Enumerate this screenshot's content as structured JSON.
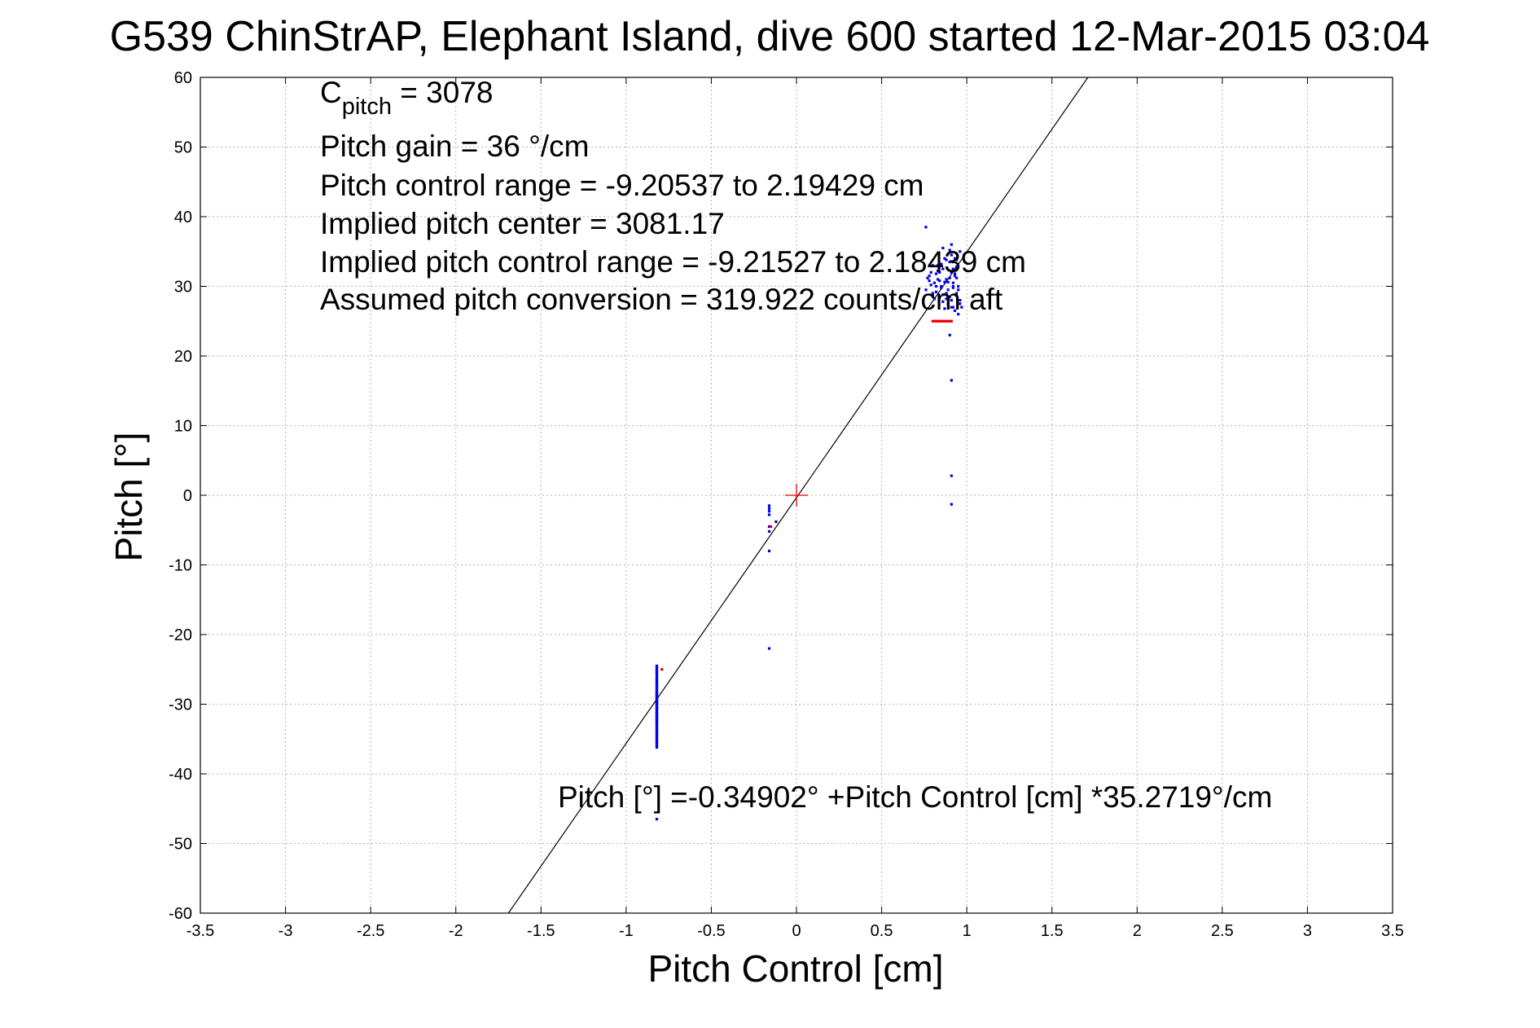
{
  "chart_data": {
    "type": "scatter",
    "title": "G539 ChinStrAP, Elephant Island, dive 600 started 12-Mar-2015 03:04",
    "xlabel": "Pitch Control [cm]",
    "ylabel": "Pitch [°]",
    "xlim": [
      -3.5,
      3.5
    ],
    "ylim": [
      -60,
      60
    ],
    "xticks": [
      -3.5,
      -3,
      -2.5,
      -2,
      -1.5,
      -1,
      -0.5,
      0,
      0.5,
      1,
      1.5,
      2,
      2.5,
      3,
      3.5
    ],
    "yticks": [
      -60,
      -50,
      -40,
      -30,
      -20,
      -10,
      0,
      10,
      20,
      30,
      40,
      50,
      60
    ],
    "xtick_labels": [
      "-3.5",
      "-3",
      "-2.5",
      "-2",
      "-1.5",
      "-1",
      "-0.5",
      "0",
      "0.5",
      "1",
      "1.5",
      "2",
      "2.5",
      "3",
      "3.5"
    ],
    "ytick_labels": [
      "-60",
      "-50",
      "-40",
      "-30",
      "-20",
      "-10",
      "0",
      "10",
      "20",
      "30",
      "40",
      "50",
      "60"
    ],
    "grid": true,
    "colors": {
      "series_main": "#0000ee",
      "series_flagged": "#ee0000",
      "fit_line": "#000000",
      "origin_marker": "#ee0000"
    },
    "annotations": {
      "c_pitch_label": "C",
      "c_pitch_sub": "pitch",
      "c_pitch_value": " = 3078",
      "lines": [
        "Pitch gain = 36 °/cm",
        "Pitch control range = -9.20537 to 2.19429 cm",
        "Implied pitch center = 3081.17",
        "Implied pitch control range = -9.21527 to 2.18439 cm",
        "Assumed pitch conversion = 319.922 counts/cm aft"
      ],
      "fit_equation": "Pitch [°] =-0.34902° +Pitch Control [cm] *35.2719°/cm"
    },
    "fit": {
      "intercept": -0.34902,
      "slope": 35.2719
    },
    "origin_marker": {
      "x": 0,
      "y": 0
    },
    "series": [
      {
        "x": [
          0.76,
          0.77,
          0.78,
          0.79,
          0.8,
          0.81,
          0.82,
          0.83,
          0.84,
          0.85,
          0.86,
          0.87,
          0.88,
          0.89,
          0.9,
          0.91,
          0.92,
          0.93,
          0.94,
          0.95,
          0.96,
          0.97,
          0.78,
          0.8,
          0.82,
          0.84,
          0.86,
          0.88,
          0.9,
          0.92,
          0.94,
          0.96,
          0.79,
          0.81,
          0.83,
          0.85,
          0.87,
          0.89,
          0.91,
          0.93,
          0.95,
          0.8,
          0.82,
          0.84,
          0.86,
          0.88,
          0.9,
          0.92,
          0.94,
          0.96,
          0.83,
          0.85,
          0.87,
          0.89,
          0.91,
          0.93,
          0.95,
          0.86,
          0.88,
          0.9,
          0.92,
          0.94,
          0.9,
          0.91,
          0.92,
          0.93,
          0.91,
          0.92,
          0.91,
          0.91,
          0.91,
          0.76,
          -0.82,
          -0.82,
          -0.82,
          -0.82,
          -0.82,
          -0.82,
          -0.82,
          -0.82,
          -0.82,
          -0.82,
          -0.82,
          -0.82,
          -0.82,
          -0.82,
          -0.82,
          -0.82,
          -0.82,
          -0.82,
          -0.82,
          -0.82,
          -0.82,
          -0.82,
          -0.82,
          -0.82,
          -0.82,
          -0.82,
          -0.82,
          -0.82,
          -0.82,
          -0.82,
          -0.82,
          -0.82,
          -0.82,
          -0.82,
          -0.82,
          -0.82,
          -0.82,
          -0.82,
          -0.82,
          -0.82,
          -0.82,
          -0.82,
          -0.82,
          -0.82,
          -0.82,
          -0.82,
          -0.82,
          -0.82,
          -0.82,
          -0.82,
          -0.82,
          -0.82,
          -0.82,
          -0.82,
          -0.82,
          -0.82,
          -0.82,
          -0.82,
          -0.82,
          -0.82,
          -0.82,
          -0.82,
          -0.82,
          -0.82,
          -0.82,
          -0.82,
          -0.82,
          -0.82,
          -0.82,
          -0.82,
          -0.82,
          -0.82,
          -0.82,
          -0.82,
          -0.82,
          -0.82,
          -0.82,
          -0.82,
          -0.82,
          -0.82,
          -0.82,
          -0.82,
          -0.82,
          -0.82,
          -0.82,
          -0.82,
          -0.82,
          -0.82,
          -0.82,
          -0.82,
          -0.82,
          -0.82,
          -0.82,
          -0.82,
          -0.82,
          -0.82,
          -0.82,
          -0.82,
          -0.16,
          -0.16,
          -0.16,
          -0.16,
          -0.16,
          -0.16,
          -0.16,
          -0.12,
          -0.16
        ],
        "y": [
          29.5,
          31.2,
          30.8,
          32.0,
          29.0,
          30.5,
          31.8,
          33.0,
          28.5,
          30.0,
          32.5,
          34.0,
          31.0,
          29.5,
          33.5,
          32.0,
          30.5,
          31.5,
          29.0,
          30.0,
          28.0,
          27.0,
          31.5,
          33.0,
          30.0,
          32.0,
          28.8,
          33.8,
          31.2,
          29.8,
          32.8,
          35.0,
          30.2,
          28.2,
          31.0,
          33.2,
          30.6,
          27.5,
          34.5,
          26.5,
          29.5,
          28.8,
          29.2,
          30.8,
          27.8,
          28.2,
          35.2,
          33.5,
          31.2,
          27.5,
          32.2,
          29.8,
          26.8,
          30.6,
          27.0,
          31.8,
          26.0,
          35.5,
          29.0,
          28.5,
          32.5,
          33.8,
          23.0,
          28.0,
          30.0,
          34.0,
          36.0,
          27.0,
          16.5,
          2.8,
          -1.3,
          38.5,
          -24.5,
          -24.8,
          -25.1,
          -25.4,
          -25.7,
          -26.0,
          -26.3,
          -26.6,
          -26.9,
          -27.2,
          -27.5,
          -27.8,
          -28.1,
          -28.4,
          -28.7,
          -29.0,
          -29.3,
          -29.6,
          -29.9,
          -30.2,
          -30.5,
          -30.8,
          -31.1,
          -31.4,
          -31.7,
          -32.0,
          -32.3,
          -32.6,
          -32.9,
          -33.2,
          -33.5,
          -33.8,
          -34.1,
          -34.4,
          -34.7,
          -35.0,
          -35.3,
          -35.6,
          -35.9,
          -36.2,
          -24.6,
          -25.2,
          -25.8,
          -26.4,
          -27.0,
          -27.6,
          -28.2,
          -28.8,
          -29.4,
          -30.0,
          -30.6,
          -31.2,
          -31.8,
          -32.4,
          -33.0,
          -33.6,
          -34.2,
          -34.8,
          -35.4,
          -36.0,
          -29.5,
          -29.7,
          -29.9,
          -30.1,
          -30.3,
          -30.5,
          -30.7,
          -30.9,
          -31.1,
          -31.3,
          -31.5,
          -31.7,
          -31.9,
          -28.5,
          -28.7,
          -28.9,
          -29.1,
          -29.3,
          -32.1,
          -32.3,
          -32.5,
          -32.7,
          -27.5,
          -27.9,
          -28.3,
          -33.3,
          -33.7,
          -34.1,
          -26.5,
          -26.9,
          -34.5,
          -34.9,
          -25.5,
          -35.5,
          -30.0,
          -29.8,
          -30.2,
          -46.5,
          -1.5,
          -1.9,
          -2.3,
          -2.8,
          -5.2,
          -8.0,
          -22.0,
          -3.8,
          -4.5
        ]
      },
      {
        "x": [
          0.8,
          0.81,
          0.82,
          0.83,
          0.84,
          0.85,
          0.86,
          0.87,
          0.88,
          0.89,
          0.9,
          0.91,
          -0.79,
          -0.15
        ],
        "y": [
          25,
          25,
          25,
          25,
          25,
          25,
          25,
          25,
          25,
          25,
          25,
          25,
          -25,
          -4.5
        ]
      }
    ]
  }
}
